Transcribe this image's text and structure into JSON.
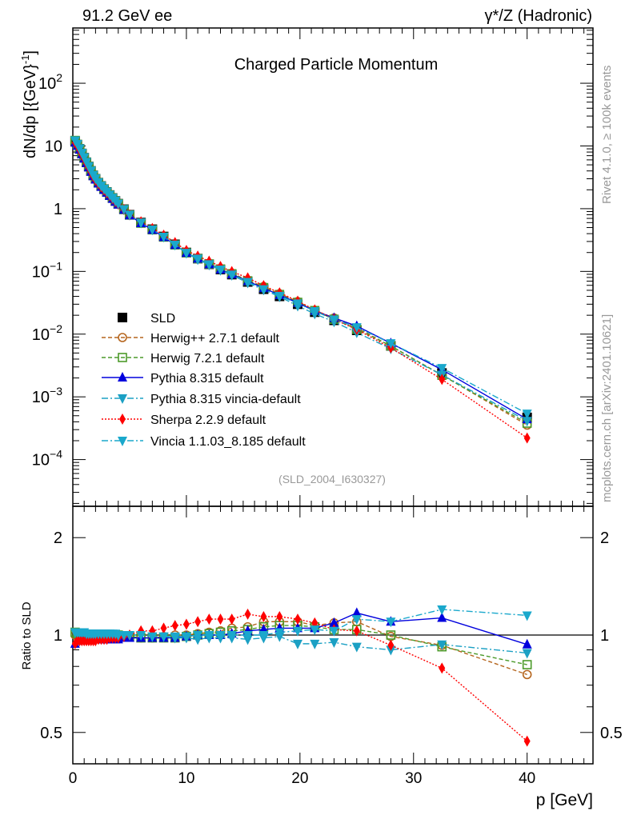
{
  "header": {
    "left": "91.2 GeV ee",
    "right": "γ*/Z (Hadronic)"
  },
  "side_labels": {
    "rivet": "Rivet 4.1.0, ≥ 100k events",
    "mcplots": "mcplots.cern.ch [arXiv:2401.10621]"
  },
  "chart_data": {
    "type": "line",
    "title": "Charged Particle Momentum",
    "analysis_id": "(SLD_2004_I630327)",
    "xlabel": "p [GeV]",
    "ylabel": "dN/dp [{GeV}",
    "ylabel_exp": "-1",
    "ylabel_close": "]",
    "ratio_ylabel": "Ratio to SLD",
    "xlim": [
      0,
      45.8
    ],
    "ylim": [
      1.8e-05,
      760
    ],
    "ratio_ylim": [
      0.4,
      2.5
    ],
    "yscale": "log",
    "ratio_yscale": "log",
    "legend_position": "bottom-left",
    "x_ticks": [
      {
        "value": 0,
        "label": "0"
      },
      {
        "value": 10,
        "label": "10"
      },
      {
        "value": 20,
        "label": "20"
      },
      {
        "value": 30,
        "label": "30"
      },
      {
        "value": 40,
        "label": "40"
      }
    ],
    "y_ticks": [
      {
        "value": 100,
        "label": "10",
        "exp": "2"
      },
      {
        "value": 10,
        "label": "10",
        "exp": ""
      },
      {
        "value": 1,
        "label": "1",
        "exp": ""
      },
      {
        "value": 0.1,
        "label": "10",
        "exp": "−1"
      },
      {
        "value": 0.01,
        "label": "10",
        "exp": "−2"
      },
      {
        "value": 0.001,
        "label": "10",
        "exp": "−3"
      },
      {
        "value": 0.0001,
        "label": "10",
        "exp": "−4"
      }
    ],
    "ratio_ticks": [
      {
        "value": 2,
        "label": "2"
      },
      {
        "value": 1,
        "label": "1"
      },
      {
        "value": 0.5,
        "label": "0.5"
      }
    ],
    "x": [
      0.2,
      0.4,
      0.6,
      0.8,
      1.0,
      1.2,
      1.4,
      1.6,
      1.8,
      2.0,
      2.25,
      2.5,
      2.75,
      3.0,
      3.25,
      3.5,
      3.75,
      4.0,
      4.5,
      5.0,
      6,
      7,
      8,
      9,
      10,
      11,
      12,
      13,
      14,
      15.4,
      16.8,
      18.2,
      19.8,
      21.3,
      23,
      25,
      28,
      32.5,
      40
    ],
    "data": {
      "name": "SLD",
      "color": "#000000",
      "values": [
        12,
        10.5,
        9.0,
        7.6,
        6.5,
        5.5,
        4.7,
        4.0,
        3.4,
        3.0,
        2.6,
        2.3,
        2.05,
        1.85,
        1.65,
        1.48,
        1.33,
        1.2,
        0.98,
        0.8,
        0.6,
        0.47,
        0.36,
        0.27,
        0.2,
        0.16,
        0.13,
        0.107,
        0.089,
        0.068,
        0.052,
        0.04,
        0.03,
        0.0224,
        0.0166,
        0.0115,
        0.0065,
        0.0024,
        0.00047
      ]
    },
    "series": [
      {
        "name": "Herwig++ 2.7.1 default",
        "color": "#b5651d",
        "marker": "circle",
        "dash": "5,3",
        "ratio": [
          1.0,
          0.99,
          0.99,
          0.99,
          0.99,
          0.99,
          0.99,
          0.99,
          0.99,
          0.99,
          0.99,
          0.99,
          0.99,
          0.99,
          0.99,
          0.99,
          0.99,
          0.99,
          0.99,
          0.99,
          0.98,
          0.98,
          0.99,
          1.0,
          1.0,
          1.01,
          1.02,
          1.03,
          1.05,
          1.06,
          1.1,
          1.1,
          1.1,
          1.07,
          1.09,
          1.1,
          0.99,
          0.93,
          0.755
        ]
      },
      {
        "name": "Herwig 7.2.1 default",
        "color": "#4c9a2a",
        "marker": "square",
        "dash": "5,3",
        "ratio": [
          1.02,
          1.01,
          1.0,
          1.0,
          1.0,
          1.0,
          1.0,
          1.0,
          1.0,
          1.0,
          1.0,
          1.0,
          1.0,
          1.0,
          1.0,
          1.0,
          1.0,
          1.0,
          0.99,
          0.99,
          0.98,
          0.98,
          0.98,
          0.98,
          0.99,
          1.0,
          1.01,
          1.02,
          1.03,
          1.04,
          1.06,
          1.07,
          1.07,
          1.06,
          1.04,
          1.04,
          1.0,
          0.92,
          0.81
        ]
      },
      {
        "name": "Pythia 8.315 default",
        "color": "#0000dd",
        "marker": "triangle-up",
        "dash": "",
        "ratio": [
          0.94,
          0.96,
          0.97,
          0.97,
          0.97,
          0.97,
          0.97,
          0.97,
          0.97,
          0.97,
          0.97,
          0.97,
          0.97,
          0.97,
          0.97,
          0.97,
          0.97,
          0.97,
          0.98,
          0.98,
          0.98,
          0.98,
          0.98,
          0.98,
          0.99,
          1.0,
          1.0,
          1.0,
          1.01,
          1.03,
          1.04,
          1.05,
          1.05,
          1.05,
          1.09,
          1.17,
          1.1,
          1.13,
          0.935
        ]
      },
      {
        "name": "Pythia 8.315 vincia-default",
        "color": "#1ba0c4",
        "marker": "triangle-down",
        "dash": "8,3,2,3",
        "ratio": [
          1.02,
          1.02,
          1.01,
          1.01,
          1.01,
          1.01,
          1.01,
          1.01,
          1.01,
          1.01,
          1.01,
          1.01,
          1.01,
          1.01,
          1.01,
          1.0,
          1.0,
          1.0,
          1.0,
          1.0,
          1.0,
          0.99,
          0.99,
          0.98,
          0.98,
          0.97,
          0.98,
          0.98,
          0.98,
          0.97,
          0.98,
          0.99,
          0.94,
          0.94,
          0.95,
          0.92,
          0.9,
          0.935,
          0.88
        ]
      },
      {
        "name": "Sherpa 2.2.9 default",
        "color": "#ff0000",
        "marker": "diamond",
        "dash": "2,2",
        "ratio": [
          0.94,
          0.96,
          0.96,
          0.96,
          0.96,
          0.96,
          0.96,
          0.96,
          0.96,
          0.96,
          0.97,
          0.97,
          0.97,
          0.97,
          0.98,
          0.98,
          0.98,
          0.98,
          0.99,
          1.0,
          1.03,
          1.03,
          1.05,
          1.07,
          1.08,
          1.1,
          1.12,
          1.12,
          1.12,
          1.16,
          1.14,
          1.14,
          1.12,
          1.09,
          1.04,
          1.03,
          0.93,
          0.79,
          0.47
        ]
      },
      {
        "name": "Vincia 1.1.03_8.185 default",
        "color": "#1aa8cc",
        "marker": "triangle-down",
        "dash": "8,3,2,3",
        "ratio": [
          1.02,
          1.02,
          1.02,
          1.02,
          1.02,
          1.01,
          1.01,
          1.01,
          1.01,
          1.01,
          1.01,
          1.01,
          1.01,
          1.01,
          1.01,
          1.01,
          1.01,
          1.0,
          1.0,
          1.0,
          1.0,
          0.99,
          0.99,
          0.99,
          0.99,
          1.0,
          1.0,
          1.0,
          1.0,
          1.0,
          1.0,
          1.02,
          1.03,
          1.04,
          1.03,
          1.12,
          1.1,
          1.2,
          1.15
        ]
      }
    ]
  }
}
